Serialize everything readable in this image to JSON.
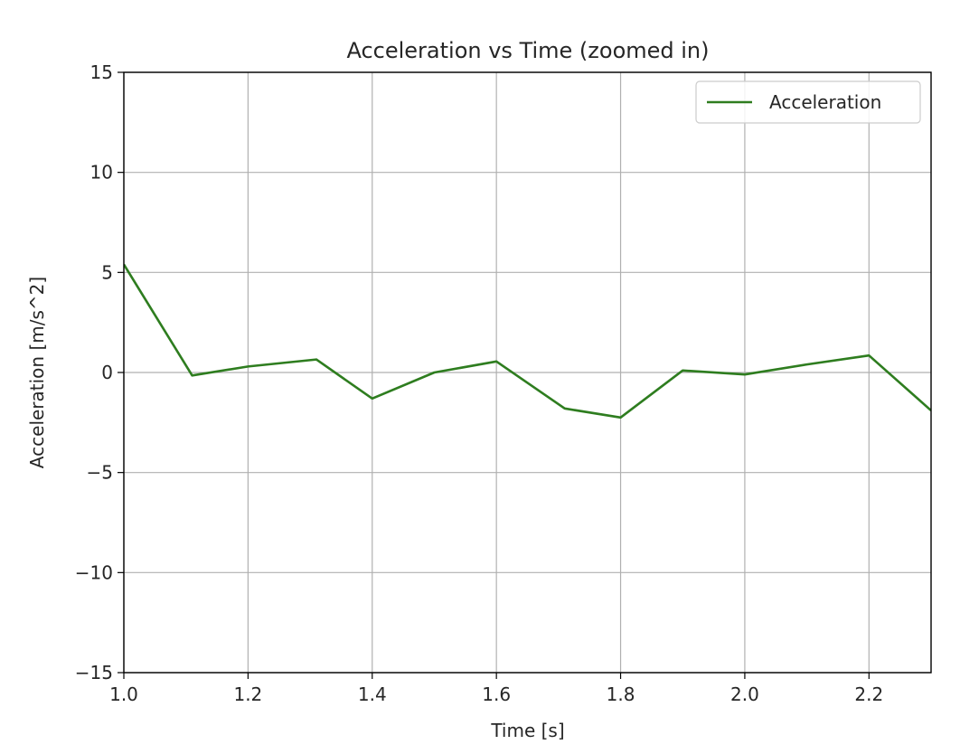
{
  "chart_data": {
    "type": "line",
    "title": "Acceleration vs Time (zoomed in)",
    "xlabel": "Time [s]",
    "ylabel": "Acceleration [m/s^2]",
    "xlim": [
      1.0,
      2.3
    ],
    "ylim": [
      -15,
      15
    ],
    "xticks": [
      1.0,
      1.2,
      1.4,
      1.6,
      1.8,
      2.0,
      2.2
    ],
    "xtick_labels": [
      "1.0",
      "1.2",
      "1.4",
      "1.6",
      "1.8",
      "2.0",
      "2.2"
    ],
    "yticks": [
      -15,
      -10,
      -5,
      0,
      5,
      10,
      15
    ],
    "ytick_labels": [
      "−15",
      "−10",
      "−5",
      "0",
      "5",
      "10",
      "15"
    ],
    "grid": true,
    "legend_position": "top-right",
    "series": [
      {
        "name": "Acceleration",
        "color": "#2e7d1f",
        "x": [
          1.0,
          1.11,
          1.2,
          1.31,
          1.4,
          1.5,
          1.6,
          1.71,
          1.8,
          1.9,
          2.0,
          2.1,
          2.2,
          2.3
        ],
        "y": [
          5.4,
          -0.15,
          0.3,
          0.65,
          -1.3,
          0.0,
          0.55,
          -1.8,
          -2.25,
          0.1,
          -0.1,
          0.4,
          0.85,
          -1.9
        ]
      }
    ]
  }
}
